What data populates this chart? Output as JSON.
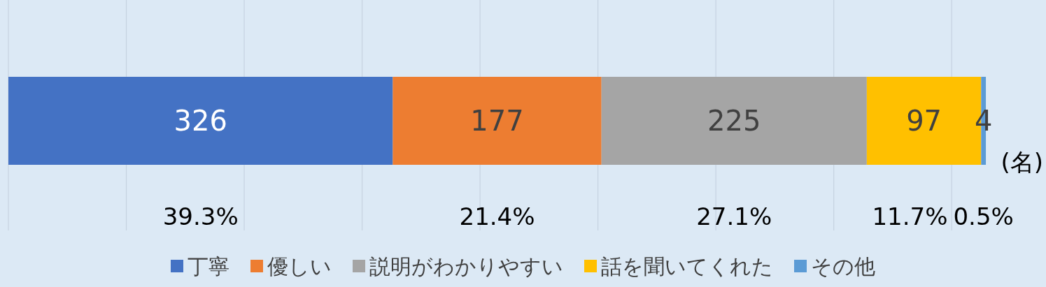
{
  "chart_data": {
    "type": "bar",
    "orientation": "horizontal",
    "stacked": true,
    "categories": [
      null
    ],
    "series": [
      {
        "name": "丁寧",
        "color": "#4472c4",
        "values": [
          326
        ]
      },
      {
        "name": "優しい",
        "color": "#ed7d31",
        "values": [
          177
        ]
      },
      {
        "name": "説明がわかりやすい",
        "color": "#a5a5a5",
        "values": [
          225
        ]
      },
      {
        "name": "話を聞いてくれた",
        "color": "#ffc000",
        "values": [
          97
        ]
      },
      {
        "name": "その他",
        "color": "#5b9bd5",
        "values": [
          4
        ]
      }
    ],
    "data_labels": true,
    "xticks": [
      {
        "value": 0,
        "label": null
      },
      {
        "value": 100,
        "label": null
      },
      {
        "value": 200,
        "label": null
      },
      {
        "value": 300,
        "label": null
      },
      {
        "value": 400,
        "label": null
      },
      {
        "value": 500,
        "label": null
      },
      {
        "value": 600,
        "label": null
      },
      {
        "value": 700,
        "label": null
      },
      {
        "value": 800,
        "label": null
      }
    ],
    "grid": "x",
    "legend": "bottom",
    "annotations": [
      "39.3%",
      "21.4%",
      "27.1%",
      "11.7%",
      "0.5%",
      "(名)"
    ]
  }
}
